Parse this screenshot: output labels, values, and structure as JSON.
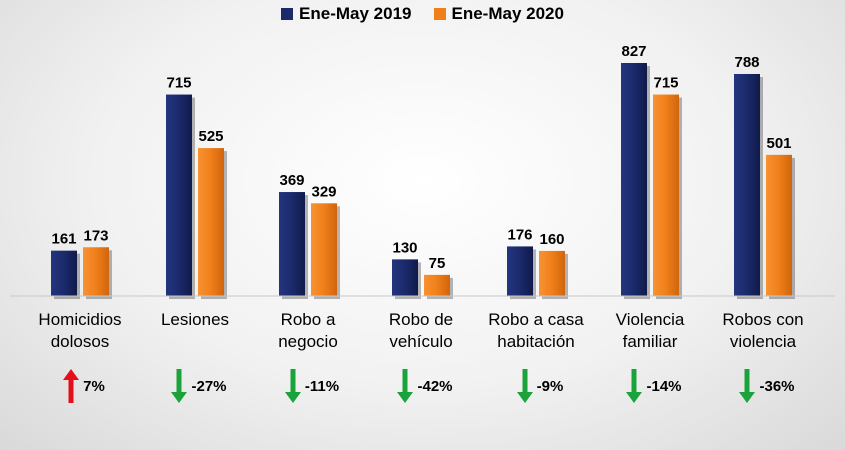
{
  "legend": [
    {
      "name": "Ene-May 2019",
      "color": "#1b2a6b"
    },
    {
      "name": "Ene-May 2020",
      "color": "#f07f1a"
    }
  ],
  "chart_data": {
    "type": "bar",
    "title": "",
    "xlabel": "",
    "ylabel": "",
    "ylim": [
      0,
      900
    ],
    "grid": false,
    "legend_position": "top-center",
    "categories": [
      "Homicidios\ndolosos",
      "Lesiones",
      "Robo a\nnegocio",
      "Robo de\nvehículo",
      "Robo a casa\nhabitación",
      "Violencia\nfamiliar",
      "Robos con\nviolencia"
    ],
    "series": [
      {
        "name": "Ene-May 2019",
        "color": "#1b2a6b",
        "values": [
          161,
          715,
          369,
          130,
          176,
          827,
          788
        ]
      },
      {
        "name": "Ene-May 2020",
        "color": "#f07f1a",
        "values": [
          173,
          525,
          329,
          75,
          160,
          715,
          501
        ]
      }
    ],
    "annotations": [
      {
        "text": "7%",
        "direction": "up",
        "color": "#e3101a"
      },
      {
        "text": "-27%",
        "direction": "down",
        "color": "#1aa33a"
      },
      {
        "text": "-11%",
        "direction": "down",
        "color": "#1aa33a"
      },
      {
        "text": "-42%",
        "direction": "down",
        "color": "#1aa33a"
      },
      {
        "text": "-9%",
        "direction": "down",
        "color": "#1aa33a"
      },
      {
        "text": "-14%",
        "direction": "down",
        "color": "#1aa33a"
      },
      {
        "text": "-36%",
        "direction": "down",
        "color": "#1aa33a"
      }
    ]
  }
}
